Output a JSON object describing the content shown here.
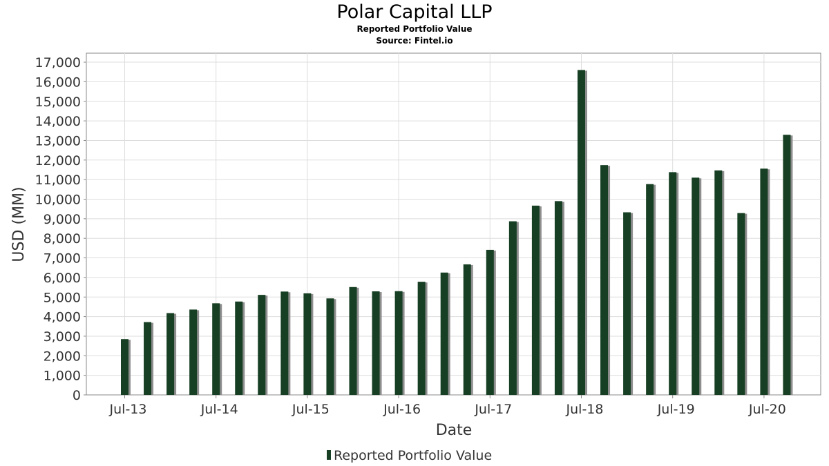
{
  "chart_data": {
    "type": "bar",
    "title": "Polar Capital LLP",
    "subtitle": "Reported Portfolio Value",
    "source": "Source: Fintel.io",
    "xlabel": "Date",
    "ylabel": "USD (MM)",
    "ylim": [
      0,
      17400
    ],
    "yticks": [
      0,
      1000,
      2000,
      3000,
      4000,
      5000,
      6000,
      7000,
      8000,
      9000,
      10000,
      11000,
      12000,
      13000,
      14000,
      15000,
      16000,
      17000
    ],
    "ytick_labels": [
      "0",
      "1,000",
      "2,000",
      "3,000",
      "4,000",
      "5,000",
      "6,000",
      "7,000",
      "8,000",
      "9,000",
      "10,000",
      "11,000",
      "12,000",
      "13,000",
      "14,000",
      "15,000",
      "16,000",
      "17,000"
    ],
    "xtick_labels": [
      "Jul-13",
      "Jul-14",
      "Jul-15",
      "Jul-16",
      "Jul-17",
      "Jul-18",
      "Jul-19",
      "Jul-20"
    ],
    "categories": [
      "2013-Q3",
      "2013-Q4",
      "2014-Q1",
      "2014-Q2",
      "2014-Q3",
      "2014-Q4",
      "2015-Q1",
      "2015-Q2",
      "2015-Q3",
      "2015-Q4",
      "2016-Q1",
      "2016-Q2",
      "2016-Q3",
      "2016-Q4",
      "2017-Q1",
      "2017-Q2",
      "2017-Q3",
      "2017-Q4",
      "2018-Q1",
      "2018-Q2",
      "2018-Q3",
      "2018-Q4",
      "2019-Q1",
      "2019-Q2",
      "2019-Q3",
      "2019-Q4",
      "2020-Q1",
      "2020-Q2",
      "2020-Q3",
      "2020-Q4"
    ],
    "series": [
      {
        "name": "Reported Portfolio Value",
        "color": "#173f23",
        "values": [
          2850,
          3720,
          4180,
          4360,
          4680,
          4770,
          5110,
          5280,
          5190,
          4930,
          5510,
          5290,
          5300,
          5780,
          6250,
          6670,
          7410,
          8870,
          9670,
          9900,
          16600,
          11740,
          9330,
          10770,
          11380,
          11100,
          11470,
          9290,
          11560,
          13290
        ]
      }
    ],
    "grid": true,
    "legend_position": "bottom"
  },
  "colors": {
    "bar": "#173f23",
    "shadow": "#8e8e8e",
    "grid": "#dddddd",
    "axis": "#888888"
  }
}
